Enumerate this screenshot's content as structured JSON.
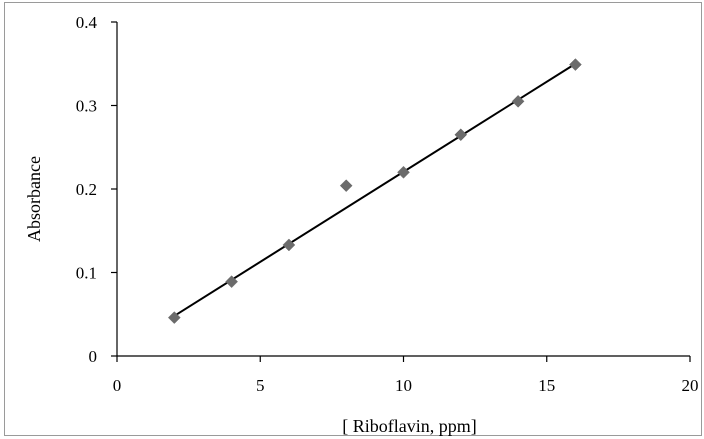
{
  "chart_data": {
    "type": "scatter",
    "xlabel": "[ Riboflavin, ppm]",
    "ylabel": "Absorbance",
    "xlim": [
      0,
      20
    ],
    "ylim": [
      0,
      0.4
    ],
    "xticks": [
      0,
      5,
      10,
      15,
      20
    ],
    "yticks": [
      0,
      0.1,
      0.2,
      0.3,
      0.4
    ],
    "xtick_labels": [
      "0",
      "5",
      "10",
      "15",
      "20"
    ],
    "ytick_labels": [
      "0",
      "0.1",
      "0.2",
      "0.3",
      "0.4"
    ],
    "grid": false,
    "legend": "none",
    "series": [
      {
        "marker": "diamond",
        "color": "#6b6b6b",
        "x": [
          2,
          4,
          6,
          8,
          10,
          12,
          14,
          16
        ],
        "y": [
          0.046,
          0.089,
          0.133,
          0.204,
          0.22,
          0.265,
          0.305,
          0.349
        ]
      }
    ],
    "trendline": {
      "type": "linear",
      "color": "#000000",
      "x": [
        2,
        16
      ],
      "y": [
        0.048,
        0.35
      ]
    }
  }
}
